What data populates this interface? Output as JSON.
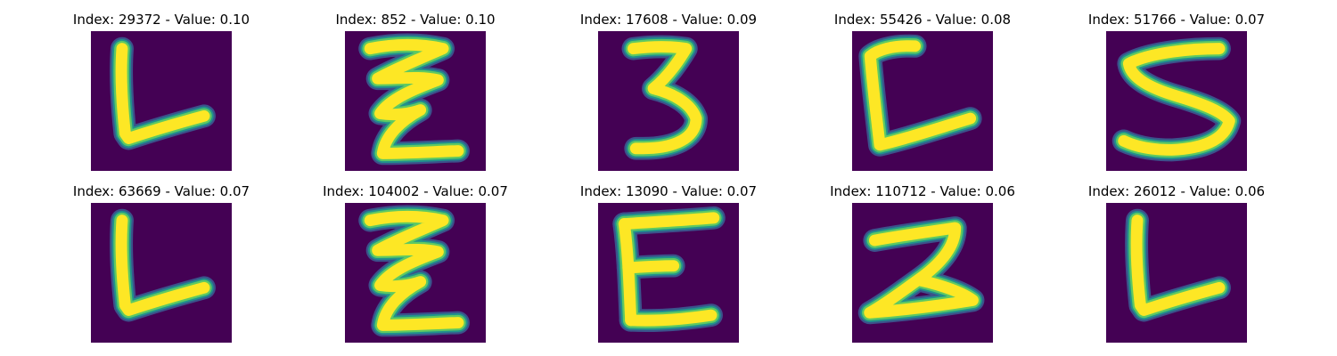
{
  "colors": {
    "background": "#440154",
    "edge_dark": "#3b528b",
    "edge_mid": "#21918c",
    "edge_light": "#5ec962",
    "stroke": "#fde725"
  },
  "panels": [
    {
      "title": "Index: 29372 - Value: 0.10",
      "glyph": "L"
    },
    {
      "title": "Index: 852 - Value: 0.10",
      "glyph": "Z-scribble"
    },
    {
      "title": "Index: 17608 - Value: 0.09",
      "glyph": "3"
    },
    {
      "title": "Index: 55426 - Value: 0.08",
      "glyph": "C-open"
    },
    {
      "title": "Index: 51766 - Value: 0.07",
      "glyph": "S"
    },
    {
      "title": "Index: 63669 - Value: 0.07",
      "glyph": "L"
    },
    {
      "title": "Index: 104002 - Value: 0.07",
      "glyph": "Z-scribble"
    },
    {
      "title": "Index: 13090 - Value: 0.07",
      "glyph": "E"
    },
    {
      "title": "Index: 110712 - Value: 0.06",
      "glyph": "2"
    },
    {
      "title": "Index: 26012 - Value: 0.06",
      "glyph": "L"
    }
  ]
}
